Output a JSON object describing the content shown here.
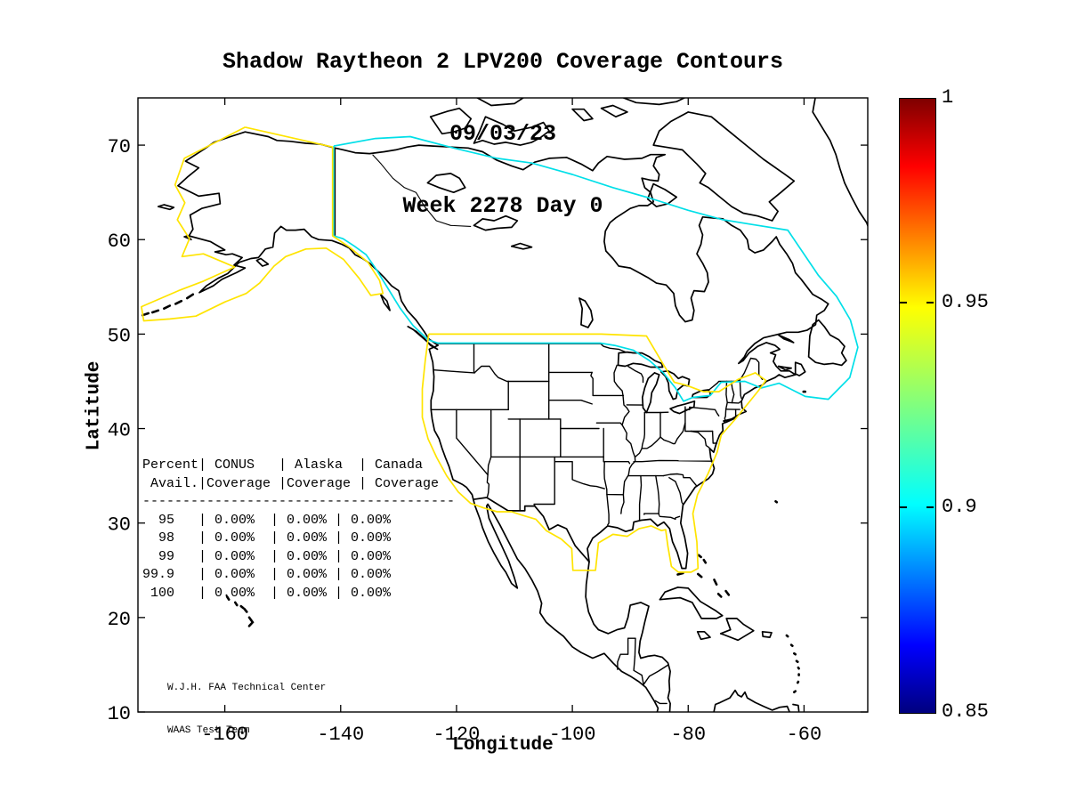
{
  "figure": {
    "title_line1": "Shadow Raytheon 2 LPV200 Coverage Contours",
    "title_line2": "09/03/23",
    "title_line3": "Week 2278 Day 0"
  },
  "axes": {
    "xlabel": "Longitude",
    "ylabel": "Latitude",
    "x_ticks": [
      "-160",
      "-140",
      "-120",
      "-100",
      "-80",
      "-60"
    ],
    "x_tick_values": [
      -160,
      -140,
      -120,
      -100,
      -80,
      -60
    ],
    "y_ticks": [
      "70",
      "60",
      "50",
      "40",
      "30",
      "20",
      "10"
    ],
    "y_tick_values": [
      70,
      60,
      50,
      40,
      30,
      20,
      10
    ]
  },
  "colorbar": {
    "min": 0.85,
    "max": 1,
    "colormap": "jet",
    "ticks": [
      {
        "label": "1",
        "value": 1
      },
      {
        "label": "0.95",
        "value": 0.95
      },
      {
        "label": "0.9",
        "value": 0.9
      },
      {
        "label": "0.85",
        "value": 0.85
      }
    ]
  },
  "table": {
    "lines": [
      "Percent| CONUS   | Alaska  | Canada",
      " Avail.|Coverage |Coverage | Coverage",
      "---------------------------------------",
      "  95   | 0.00%  | 0.00% | 0.00%",
      "  98   | 0.00%  | 0.00% | 0.00%",
      "  99   | 0.00%  | 0.00% | 0.00%",
      "99.9   | 0.00%  | 0.00% | 0.00%",
      " 100   | 0.00%  | 0.00% | 0.00%"
    ]
  },
  "attribution": {
    "line1": "W.J.H. FAA Technical Center",
    "line2": "WAAS Test Team"
  },
  "chart_data": {
    "type": "map",
    "title": "Shadow Raytheon 2 LPV200 Coverage Contours",
    "date": "09/03/23",
    "week": 2278,
    "day": 0,
    "xlabel": "Longitude",
    "ylabel": "Latitude",
    "xlim": [
      -175,
      -49
    ],
    "ylim": [
      10,
      75
    ],
    "x_ticks": [
      -160,
      -140,
      -120,
      -100,
      -80,
      -60
    ],
    "y_ticks": [
      70,
      60,
      50,
      40,
      30,
      20,
      10
    ],
    "grid": false,
    "colorbar": {
      "colormap": "jet",
      "min": 0.85,
      "max": 1,
      "tick_labels": [
        "1",
        "0.95",
        "0.9",
        "0.85"
      ],
      "position": "right"
    },
    "contours": [
      {
        "name": "conus-alaska-coverage-contour",
        "color": "#ffe400",
        "approx_level": 0.95,
        "regions": [
          "Alaska",
          "CONUS"
        ]
      },
      {
        "name": "canada-coverage-contour",
        "color": "#00dfe8",
        "approx_level": 0.9,
        "regions": [
          "Canada"
        ]
      }
    ],
    "availability_table": {
      "columns": [
        "Percent Avail.",
        "CONUS Coverage",
        "Alaska Coverage",
        "Canada Coverage"
      ],
      "rows": [
        [
          "95",
          "0.00%",
          "0.00%",
          "0.00%"
        ],
        [
          "98",
          "0.00%",
          "0.00%",
          "0.00%"
        ],
        [
          "99",
          "0.00%",
          "0.00%",
          "0.00%"
        ],
        [
          "99.9",
          "0.00%",
          "0.00%",
          "0.00%"
        ],
        [
          "100",
          "0.00%",
          "0.00%",
          "0.00%"
        ]
      ]
    },
    "attribution": [
      "W.J.H. FAA Technical Center",
      "WAAS Test Team"
    ]
  }
}
